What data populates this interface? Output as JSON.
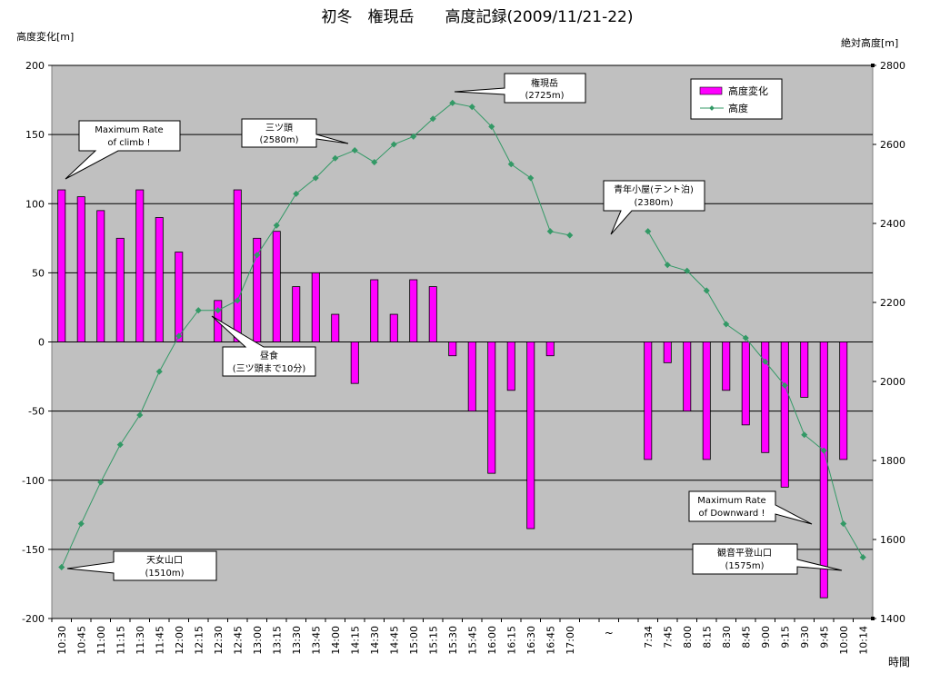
{
  "chart_data": {
    "type": "bar+line",
    "title": "初冬　権現岳　　高度記録(2009/11/21-22)",
    "y_left_label": "高度変化[m]",
    "y_right_label": "絶対高度[m]",
    "x_label": "時間",
    "y_left_lim": [
      -200,
      200
    ],
    "y_right_lim": [
      1400,
      2800
    ],
    "y_left_ticks": [
      200,
      150,
      100,
      50,
      0,
      -50,
      -100,
      -150,
      -200
    ],
    "y_right_ticks": [
      2800,
      2600,
      2400,
      2200,
      2000,
      1800,
      1600,
      1400
    ],
    "grid": true,
    "legend_position": "top-right",
    "categories": [
      "10:30",
      "10:45",
      "11:00",
      "11:15",
      "11:30",
      "11:45",
      "12:00",
      "12:15",
      "12:30",
      "12:45",
      "13:00",
      "13:15",
      "13:30",
      "13:45",
      "14:00",
      "14:15",
      "14:30",
      "14:45",
      "15:00",
      "15:15",
      "15:30",
      "15:45",
      "16:00",
      "16:15",
      "16:30",
      "16:45",
      "17:00",
      "",
      "~",
      "",
      "7:34",
      "7:45",
      "8:00",
      "8:15",
      "8:30",
      "8:45",
      "9:00",
      "9:15",
      "9:30",
      "9:45",
      "10:00",
      "10:14"
    ],
    "series": [
      {
        "name": "高度変化",
        "type": "bar",
        "axis": "left",
        "color": "#ff00ff",
        "values": [
          110,
          105,
          95,
          75,
          110,
          90,
          65,
          null,
          30,
          110,
          75,
          80,
          40,
          50,
          20,
          -30,
          45,
          20,
          45,
          40,
          -10,
          -50,
          -95,
          -35,
          -135,
          -10,
          null,
          null,
          null,
          null,
          -85,
          -15,
          -50,
          -85,
          -35,
          -60,
          -80,
          -105,
          -40,
          -185,
          -85,
          null
        ]
      },
      {
        "name": "高度",
        "type": "line",
        "axis": "right",
        "color": "#339966",
        "values": [
          1530,
          1640,
          1745,
          1840,
          1915,
          2025,
          2115,
          2180,
          2180,
          2205,
          2320,
          2395,
          2475,
          2515,
          2565,
          2585,
          2555,
          2600,
          2620,
          2665,
          2705,
          2695,
          2645,
          2550,
          2515,
          2380,
          2370,
          null,
          null,
          null,
          2380,
          2295,
          2280,
          2230,
          2145,
          2110,
          2050,
          1990,
          1865,
          1825,
          1640,
          1555
        ]
      }
    ],
    "annotations": [
      {
        "lines": [
          "Maximum Rate",
          "of climb !"
        ]
      },
      {
        "lines": [
          "三ツ頭",
          "(2580m)"
        ]
      },
      {
        "lines": [
          "権現岳",
          "(2725m)"
        ]
      },
      {
        "lines": [
          "青年小屋(テント泊)",
          "(2380m)"
        ]
      },
      {
        "lines": [
          "昼食",
          "(三ツ頭まで10分)"
        ]
      },
      {
        "lines": [
          "天女山口",
          "(1510m)"
        ]
      },
      {
        "lines": [
          "Maximum Rate",
          "of Downward !"
        ]
      },
      {
        "lines": [
          "観音平登山口",
          "(1575m)"
        ]
      }
    ]
  }
}
